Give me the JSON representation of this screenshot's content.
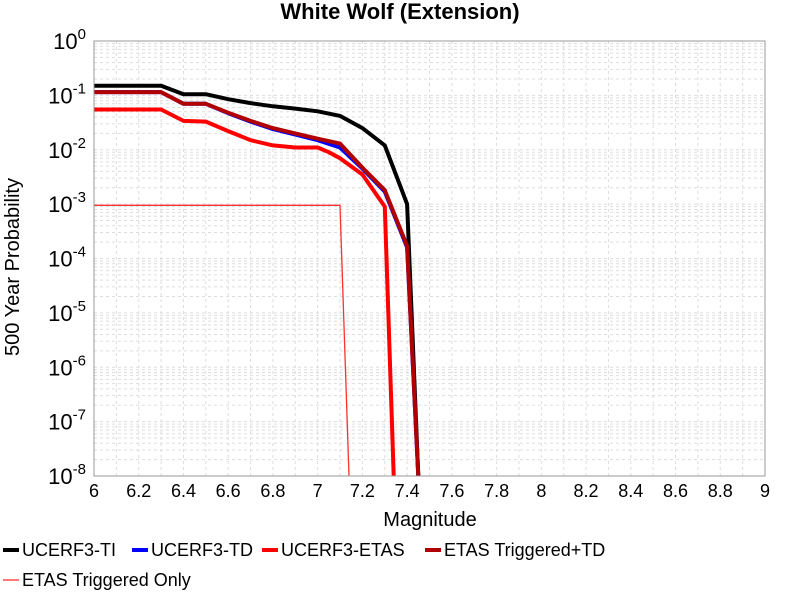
{
  "chart_data": {
    "type": "line",
    "title": "White Wolf (Extension)",
    "xlabel": "Magnitude",
    "ylabel": "500 Year Probability",
    "xlim": [
      6,
      9
    ],
    "ylim": [
      1e-08,
      1
    ],
    "yscale": "log",
    "grid": true,
    "x_ticks": [
      "6",
      "6.2",
      "6.4",
      "6.6",
      "6.8",
      "7",
      "7.2",
      "7.4",
      "7.6",
      "7.8",
      "8",
      "8.2",
      "8.4",
      "8.6",
      "8.8",
      "9"
    ],
    "y_ticks": [
      {
        "base": "10",
        "exp": "0"
      },
      {
        "base": "10",
        "exp": "-1"
      },
      {
        "base": "10",
        "exp": "-2"
      },
      {
        "base": "10",
        "exp": "-3"
      },
      {
        "base": "10",
        "exp": "-4"
      },
      {
        "base": "10",
        "exp": "-5"
      },
      {
        "base": "10",
        "exp": "-6"
      },
      {
        "base": "10",
        "exp": "-7"
      },
      {
        "base": "10",
        "exp": "-8"
      }
    ],
    "legend_position": "bottom",
    "series": [
      {
        "name": "UCERF3-TI",
        "color": "#000000",
        "width": 4,
        "points": [
          [
            6.0,
            0.15
          ],
          [
            6.1,
            0.15
          ],
          [
            6.2,
            0.15
          ],
          [
            6.3,
            0.15
          ],
          [
            6.4,
            0.105
          ],
          [
            6.5,
            0.105
          ],
          [
            6.6,
            0.085
          ],
          [
            6.7,
            0.072
          ],
          [
            6.8,
            0.063
          ],
          [
            6.9,
            0.057
          ],
          [
            7.0,
            0.051
          ],
          [
            7.1,
            0.042
          ],
          [
            7.2,
            0.025
          ],
          [
            7.3,
            0.012
          ],
          [
            7.4,
            0.001
          ],
          [
            7.45,
            1e-08
          ]
        ]
      },
      {
        "name": "UCERF3-TD",
        "color": "#0000ff",
        "width": 4,
        "points": [
          [
            6.0,
            0.115
          ],
          [
            6.1,
            0.115
          ],
          [
            6.2,
            0.115
          ],
          [
            6.3,
            0.115
          ],
          [
            6.4,
            0.07
          ],
          [
            6.5,
            0.07
          ],
          [
            6.6,
            0.047
          ],
          [
            6.7,
            0.033
          ],
          [
            6.8,
            0.024
          ],
          [
            6.9,
            0.019
          ],
          [
            7.0,
            0.015
          ],
          [
            7.1,
            0.011
          ],
          [
            7.2,
            0.0045
          ],
          [
            7.3,
            0.0017
          ],
          [
            7.4,
            0.00016
          ],
          [
            7.45,
            1e-08
          ]
        ]
      },
      {
        "name": "UCERF3-ETAS",
        "color": "#ff0000",
        "width": 4,
        "points": [
          [
            6.0,
            0.055
          ],
          [
            6.1,
            0.055
          ],
          [
            6.2,
            0.055
          ],
          [
            6.3,
            0.055
          ],
          [
            6.4,
            0.034
          ],
          [
            6.5,
            0.033
          ],
          [
            6.6,
            0.022
          ],
          [
            6.7,
            0.015
          ],
          [
            6.8,
            0.012
          ],
          [
            6.9,
            0.011
          ],
          [
            7.0,
            0.011
          ],
          [
            7.05,
            0.009
          ],
          [
            7.1,
            0.007
          ],
          [
            7.2,
            0.0035
          ],
          [
            7.3,
            0.0009
          ],
          [
            7.34,
            1e-08
          ]
        ]
      },
      {
        "name": "ETAS Triggered+TD",
        "color": "#b00000",
        "width": 4,
        "points": [
          [
            6.0,
            0.115
          ],
          [
            6.1,
            0.115
          ],
          [
            6.2,
            0.115
          ],
          [
            6.3,
            0.115
          ],
          [
            6.4,
            0.07
          ],
          [
            6.5,
            0.07
          ],
          [
            6.6,
            0.048
          ],
          [
            6.7,
            0.034
          ],
          [
            6.8,
            0.025
          ],
          [
            6.9,
            0.02
          ],
          [
            7.0,
            0.016
          ],
          [
            7.1,
            0.013
          ],
          [
            7.2,
            0.0047
          ],
          [
            7.3,
            0.0018
          ],
          [
            7.4,
            0.00017
          ],
          [
            7.45,
            1e-08
          ]
        ]
      },
      {
        "name": "ETAS Triggered Only",
        "color": "#ff3030",
        "width": 1.3,
        "points": [
          [
            6.0,
            0.00095
          ],
          [
            7.1,
            0.00095
          ],
          [
            7.14,
            1e-08
          ]
        ]
      }
    ]
  }
}
